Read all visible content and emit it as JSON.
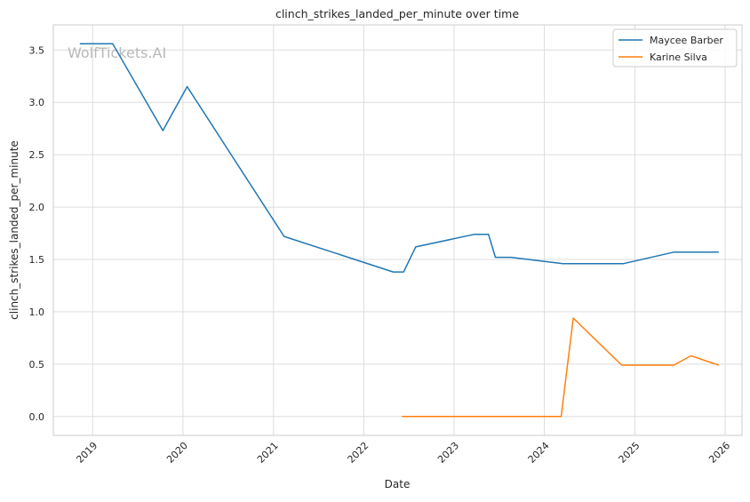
{
  "watermark": "WolfTickets.AI",
  "chart_data": {
    "type": "line",
    "title": "clinch_strikes_landed_per_minute over time",
    "xlabel": "Date",
    "ylabel": "clinch_strikes_landed_per_minute",
    "x_ticks": [
      "2019",
      "2020",
      "2021",
      "2022",
      "2023",
      "2024",
      "2025",
      "2026"
    ],
    "y_ticks": [
      "0.0",
      "0.5",
      "1.0",
      "1.5",
      "2.0",
      "2.5",
      "3.0",
      "3.5"
    ],
    "xlim": [
      "2018-07-26",
      "2026-03-10"
    ],
    "ylim": [
      -0.18,
      3.74
    ],
    "grid": true,
    "legend_position": "top-right",
    "series": [
      {
        "name": "Maycee Barber",
        "color": "#1f77b4",
        "points": [
          {
            "x": "2018-11-10",
            "y": 3.56
          },
          {
            "x": "2019-03-23",
            "y": 3.56
          },
          {
            "x": "2019-10-12",
            "y": 2.73
          },
          {
            "x": "2020-01-18",
            "y": 3.15
          },
          {
            "x": "2021-02-13",
            "y": 1.72
          },
          {
            "x": "2022-04-30",
            "y": 1.38
          },
          {
            "x": "2022-06-11",
            "y": 1.38
          },
          {
            "x": "2022-07-30",
            "y": 1.62
          },
          {
            "x": "2023-03-25",
            "y": 1.74
          },
          {
            "x": "2023-05-20",
            "y": 1.74
          },
          {
            "x": "2023-06-17",
            "y": 1.52
          },
          {
            "x": "2023-08-19",
            "y": 1.52
          },
          {
            "x": "2024-03-16",
            "y": 1.46
          },
          {
            "x": "2024-11-16",
            "y": 1.46
          },
          {
            "x": "2025-06-07",
            "y": 1.57
          },
          {
            "x": "2025-12-06",
            "y": 1.57
          }
        ]
      },
      {
        "name": "Karine Silva",
        "color": "#ff7f0e",
        "points": [
          {
            "x": "2022-06-04",
            "y": 0.0
          },
          {
            "x": "2024-03-09",
            "y": 0.0
          },
          {
            "x": "2024-04-27",
            "y": 0.94
          },
          {
            "x": "2024-11-09",
            "y": 0.49
          },
          {
            "x": "2025-06-07",
            "y": 0.49
          },
          {
            "x": "2025-08-16",
            "y": 0.58
          },
          {
            "x": "2025-12-06",
            "y": 0.49
          }
        ]
      }
    ]
  }
}
